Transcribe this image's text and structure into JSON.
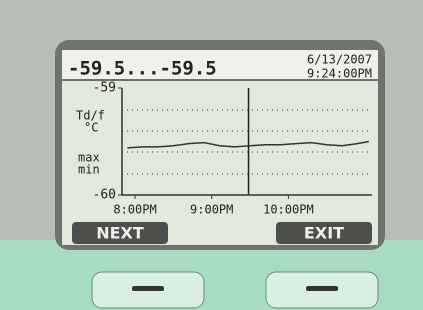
{
  "chart_data": {
    "type": "line",
    "header": {
      "range": "-59.5...-59.5",
      "date": "6/13/2007",
      "time": "9:24:00PM"
    },
    "ylabel": [
      "Td/f",
      "°C"
    ],
    "series_labels": [
      "max",
      "min"
    ],
    "x": [
      19.9,
      20.1,
      20.3,
      20.5,
      20.7,
      20.9,
      21.1,
      21.3,
      21.5,
      21.7,
      21.9,
      22.1,
      22.3,
      22.5,
      22.7,
      22.9,
      23.05
    ],
    "values": [
      -59.56,
      -59.55,
      -59.55,
      -59.54,
      -59.52,
      -59.51,
      -59.54,
      -59.55,
      -59.54,
      -59.53,
      -59.53,
      -59.52,
      -59.51,
      -59.53,
      -59.54,
      -59.52,
      -59.5
    ],
    "color": "#333333",
    "xlim": [
      19.83,
      23.09
    ],
    "ylim": [
      -60,
      -59
    ],
    "xticks": [
      {
        "value": 20,
        "label": "8:00PM"
      },
      {
        "value": 21,
        "label": "9:00PM"
      },
      {
        "value": 22,
        "label": "10:00PM"
      }
    ],
    "yticks": [
      -60,
      -59
    ],
    "cursor_x": 21.48,
    "buttons": [
      "NEXT",
      "EXIT"
    ]
  }
}
